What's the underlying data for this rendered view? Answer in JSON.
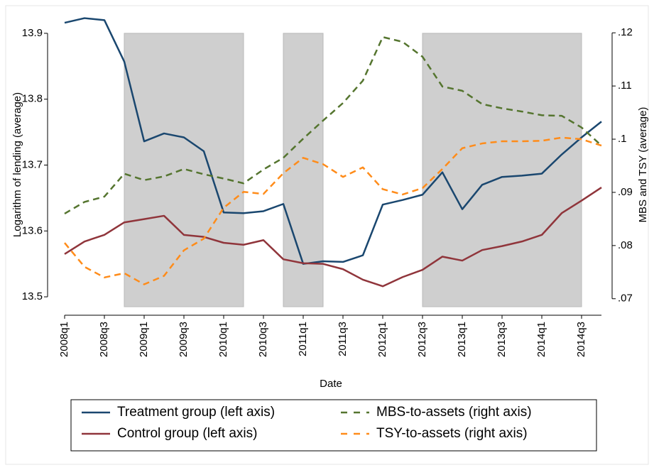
{
  "chart_data": {
    "type": "line",
    "x_label": "Date",
    "y_label": "Logarithm of lending (average)",
    "y2_label": "MBS and TSY (average)",
    "categories": [
      "2008q1",
      null,
      "2008q3",
      null,
      "2009q1",
      null,
      "2009q3",
      null,
      "2010q1",
      null,
      "2010q3",
      null,
      "2011q1",
      null,
      "2011q3",
      null,
      "2012q1",
      null,
      "2012q3",
      null,
      "2013q1",
      null,
      "2013q3",
      null,
      "2014q1",
      null,
      "2014q3",
      null
    ],
    "ylim": [
      13.485,
      13.929
    ],
    "yticks": [
      13.9,
      13.8,
      13.7,
      13.6,
      13.5
    ],
    "y2lim": [
      0.0685,
      0.1235
    ],
    "y2ticks": [
      {
        "value": 0.12,
        "label": ".12"
      },
      {
        "value": 0.11,
        "label": ".11"
      },
      {
        "value": 0.1,
        "label": ".1"
      },
      {
        "value": 0.09,
        "label": ".09"
      },
      {
        "value": 0.08,
        "label": ".08"
      },
      {
        "value": 0.07,
        "label": ".07"
      }
    ],
    "shaded": [
      [
        3,
        9
      ],
      [
        11,
        13
      ],
      [
        18,
        26
      ]
    ],
    "shade_color": "#cfcfcf",
    "series": [
      {
        "name": "Treatment group (left axis)",
        "color": "#1a476f",
        "dash": false,
        "values": [
          13.916,
          13.923,
          13.92,
          13.857,
          13.736,
          13.748,
          13.742,
          13.721,
          13.628,
          13.627,
          13.63,
          13.641,
          13.55,
          13.554,
          13.553,
          13.563,
          13.64,
          13.647,
          13.655,
          13.689,
          13.633,
          13.67,
          13.682,
          13.684,
          13.687,
          13.716,
          13.742,
          13.766
        ]
      },
      {
        "name": "Control group (left axis)",
        "color": "#90353b",
        "dash": false,
        "values": [
          13.565,
          13.584,
          13.594,
          13.613,
          13.618,
          13.623,
          13.594,
          13.591,
          13.582,
          13.579,
          13.586,
          13.557,
          13.551,
          13.55,
          13.542,
          13.526,
          13.516,
          13.53,
          13.541,
          13.561,
          13.555,
          13.571,
          13.577,
          13.584,
          13.594,
          13.627,
          13.646,
          13.666
        ]
      },
      {
        "name": "MBS-to-assets (right axis)",
        "color": "#55752f",
        "dash": true,
        "axis": "y2",
        "values": [
          0.086,
          0.0882,
          0.0892,
          0.0935,
          0.0923,
          0.093,
          0.0944,
          0.0934,
          0.0926,
          0.0917,
          0.0943,
          0.0965,
          0.1001,
          0.1035,
          0.1068,
          0.111,
          0.1192,
          0.1183,
          0.1155,
          0.1099,
          0.1091,
          0.1066,
          0.1058,
          0.1052,
          0.1045,
          0.1044,
          0.1022,
          0.0988
        ]
      },
      {
        "name": "TSY-to-assets (right axis)",
        "color": "#ff8c1a",
        "dash": true,
        "axis": "y2",
        "values": [
          0.0805,
          0.076,
          0.074,
          0.0748,
          0.0727,
          0.0743,
          0.0791,
          0.0813,
          0.0871,
          0.0901,
          0.0897,
          0.0936,
          0.0965,
          0.0953,
          0.0929,
          0.0947,
          0.0906,
          0.0896,
          0.0908,
          0.0944,
          0.0983,
          0.0992,
          0.0996,
          0.0996,
          0.0997,
          0.1003,
          0.1,
          0.0988
        ]
      }
    ]
  }
}
